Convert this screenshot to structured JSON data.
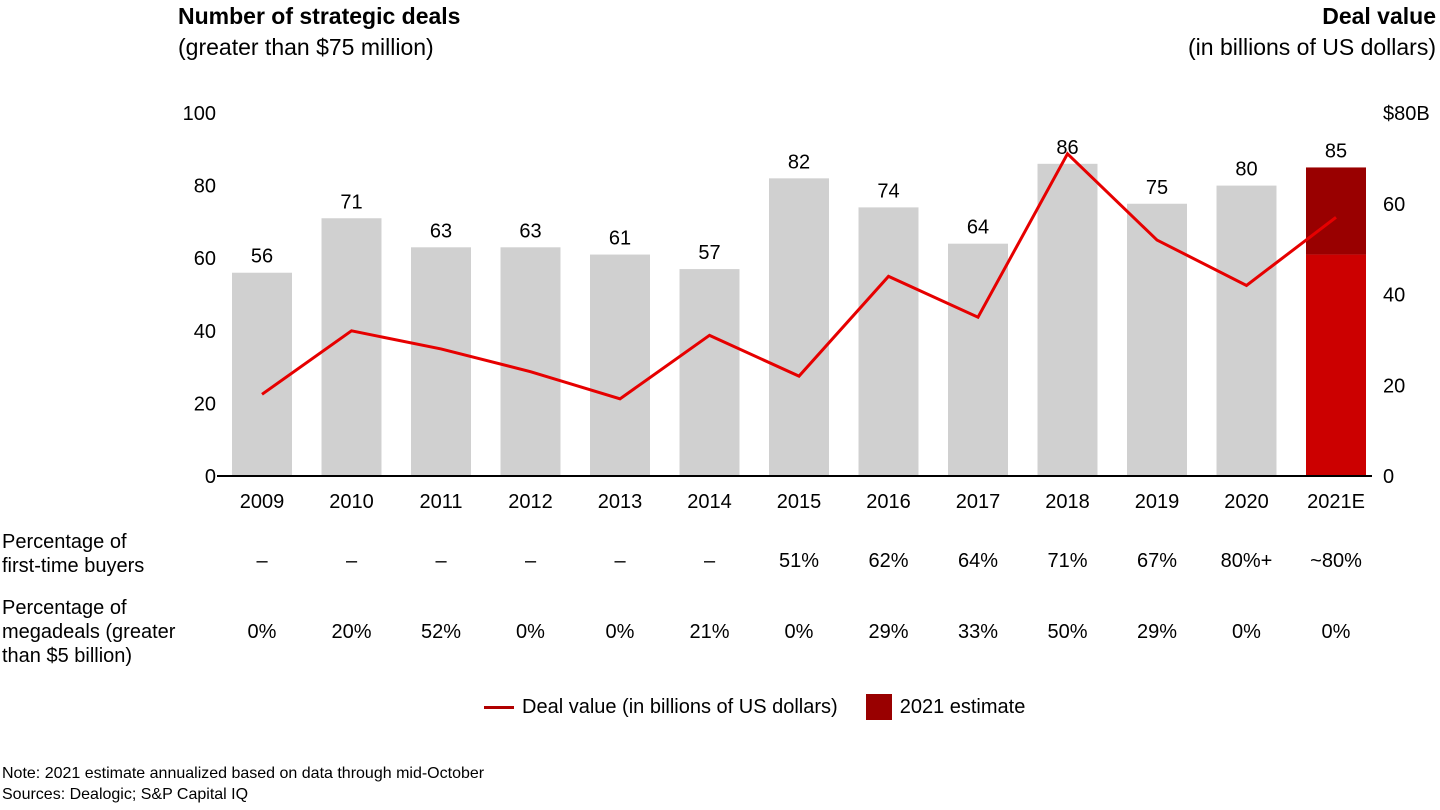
{
  "header": {
    "left_title": "Number of strategic deals",
    "left_subtitle": "(greater than $75 million)",
    "right_title": "Deal value",
    "right_subtitle": "(in billions of US dollars)"
  },
  "chart_data": {
    "type": "bar",
    "title": "Number of strategic deals (greater than $75 million) and deal value",
    "categories": [
      "2009",
      "2010",
      "2011",
      "2012",
      "2013",
      "2014",
      "2015",
      "2016",
      "2017",
      "2018",
      "2019",
      "2020",
      "2021E"
    ],
    "series": [
      {
        "name": "Number of strategic deals",
        "type": "bar",
        "axis": "left",
        "values": [
          56,
          71,
          63,
          63,
          61,
          57,
          82,
          74,
          64,
          86,
          75,
          80,
          85
        ],
        "labels": [
          "56",
          "71",
          "63",
          "63",
          "61",
          "57",
          "82",
          "74",
          "64",
          "86",
          "75",
          "80",
          "85"
        ],
        "color": "#d0d0d0"
      },
      {
        "name": "Deal value (in billions of US dollars)",
        "type": "line",
        "axis": "right",
        "values": [
          18,
          32,
          28,
          23,
          17,
          31,
          22,
          44,
          35,
          71,
          52,
          42,
          57
        ],
        "color": "#e60000"
      }
    ],
    "estimate_bar": {
      "category": "2021E",
      "actual_portion": 61,
      "estimate_total": 85,
      "actual_color": "#cc0000",
      "estimate_color": "#990000"
    },
    "left_axis": {
      "ylim": [
        0,
        100
      ],
      "ticks": [
        "0",
        "20",
        "40",
        "60",
        "80",
        "100"
      ],
      "tick_values": [
        0,
        20,
        40,
        60,
        80,
        100
      ]
    },
    "right_axis": {
      "ylim": [
        0,
        80
      ],
      "ticks": [
        "0",
        "20",
        "40",
        "60",
        "$80B"
      ],
      "tick_values": [
        0,
        20,
        40,
        60,
        80
      ]
    },
    "grid": false,
    "legend": {
      "placement": "bottom-center",
      "entries": [
        {
          "label": "Deal value (in billions of US dollars)",
          "kind": "line",
          "color": "#b00000"
        },
        {
          "label": "2021 estimate",
          "kind": "box",
          "color": "#990000"
        }
      ]
    },
    "xlabel": "",
    "ylabel": "Number of strategic deals",
    "y2label": "Deal value (in billions of US dollars)"
  },
  "table": {
    "rows": [
      {
        "label": "Percentage of first-time buyers",
        "label_lines": [
          "Percentage of",
          "first-time buyers"
        ],
        "values": [
          "–",
          "–",
          "–",
          "–",
          "–",
          "–",
          "51%",
          "62%",
          "64%",
          "71%",
          "67%",
          "80%+",
          "~80%"
        ]
      },
      {
        "label": "Percentage of megadeals (greater than $5 billion)",
        "label_lines": [
          "Percentage of",
          "megadeals (greater",
          "than $5 billion)"
        ],
        "values": [
          "0%",
          "20%",
          "52%",
          "0%",
          "0%",
          "21%",
          "0%",
          "29%",
          "33%",
          "50%",
          "29%",
          "0%",
          "0%"
        ]
      }
    ]
  },
  "footer": {
    "note": "Note: 2021 estimate annualized based on data through mid-October",
    "sources": "Sources: Dealogic; S&P Capital IQ"
  }
}
